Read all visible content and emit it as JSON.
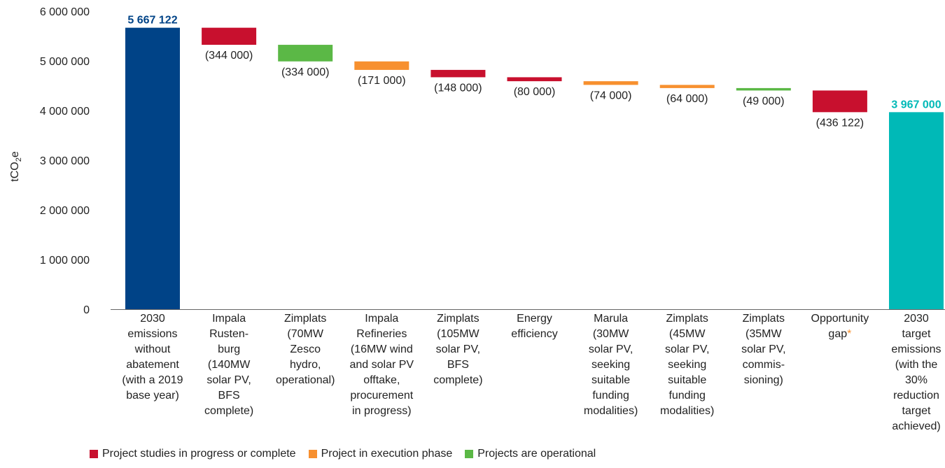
{
  "chart_data": {
    "type": "waterfall",
    "ylabel": "tCO₂e",
    "ylim": [
      0,
      6000000
    ],
    "yticks": [
      {
        "value": 0,
        "label": "0"
      },
      {
        "value": 1000000,
        "label": "1 000 000"
      },
      {
        "value": 2000000,
        "label": "2 000 000"
      },
      {
        "value": 3000000,
        "label": "3 000 000"
      },
      {
        "value": 4000000,
        "label": "4 000 000"
      },
      {
        "value": 5000000,
        "label": "5 000 000"
      },
      {
        "value": 6000000,
        "label": "6 000 000"
      }
    ],
    "grid": false,
    "legend_position": "bottom-left",
    "bars": [
      {
        "category": [
          "2030",
          "emissions",
          "without",
          "abatement",
          "(with a 2019",
          "base year)"
        ],
        "kind": "total",
        "start": 0,
        "end": 5667122,
        "label": "5 667 122",
        "color": "#004387"
      },
      {
        "category": [
          "Impala",
          "Rusten-",
          "burg",
          "(140MW",
          "solar PV,",
          "BFS",
          "complete)"
        ],
        "kind": "delta",
        "start": 5667122,
        "end": 5323122,
        "label": "(344 000)",
        "color": "#c8102e"
      },
      {
        "category": [
          "Zimplats",
          "(70MW",
          "Zesco",
          "hydro,",
          "operational)"
        ],
        "kind": "delta",
        "start": 5323122,
        "end": 4989122,
        "label": "(334 000)",
        "color": "#5bb846"
      },
      {
        "category": [
          "Impala",
          "Refineries",
          "(16MW wind",
          "and solar PV",
          "offtake,",
          "procurement",
          "in progress)"
        ],
        "kind": "delta",
        "start": 4989122,
        "end": 4818122,
        "label": "(171 000)",
        "color": "#f7902f"
      },
      {
        "category": [
          "Zimplats",
          "(105MW",
          "solar PV,",
          "BFS",
          "complete)"
        ],
        "kind": "delta",
        "start": 4818122,
        "end": 4670122,
        "label": "(148 000)",
        "color": "#c8102e"
      },
      {
        "category": [
          "Energy",
          "efficiency"
        ],
        "kind": "delta",
        "start": 4670122,
        "end": 4590122,
        "label": "(80 000)",
        "color": "#c8102e"
      },
      {
        "category": [
          "Marula",
          "(30MW",
          "solar PV,",
          "seeking",
          "suitable",
          "funding",
          "modalities)"
        ],
        "kind": "delta",
        "start": 4590122,
        "end": 4516122,
        "label": "(74 000)",
        "color": "#f7902f"
      },
      {
        "category": [
          "Zimplats",
          "(45MW",
          "solar PV,",
          "seeking",
          "suitable",
          "funding",
          "modalities)"
        ],
        "kind": "delta",
        "start": 4516122,
        "end": 4452122,
        "label": "(64 000)",
        "color": "#f7902f"
      },
      {
        "category": [
          "Zimplats",
          "(35MW",
          "solar PV,",
          "commis-",
          "sioning)"
        ],
        "kind": "delta",
        "start": 4452122,
        "end": 4403122,
        "label": "(49 000)",
        "color": "#5bb846"
      },
      {
        "category": [
          "Opportunity",
          "gap"
        ],
        "asterisk": "*",
        "kind": "delta",
        "start": 4403122,
        "end": 3967000,
        "label": "(436 122)",
        "color": "#c8102e"
      },
      {
        "category": [
          "2030",
          "target",
          "emissions",
          "(with the",
          "30%",
          "reduction",
          "target",
          "achieved)"
        ],
        "kind": "total",
        "start": 0,
        "end": 3967000,
        "label": "3 967 000",
        "color": "#00b9b7"
      }
    ],
    "legend": [
      {
        "label": "Project studies in progress or complete",
        "color": "#c8102e"
      },
      {
        "label": "Project in execution phase",
        "color": "#f7902f"
      },
      {
        "label": "Projects are operational",
        "color": "#5bb846"
      }
    ],
    "colors": {
      "asterisk": "#f7902f",
      "axis": "#666666"
    }
  }
}
